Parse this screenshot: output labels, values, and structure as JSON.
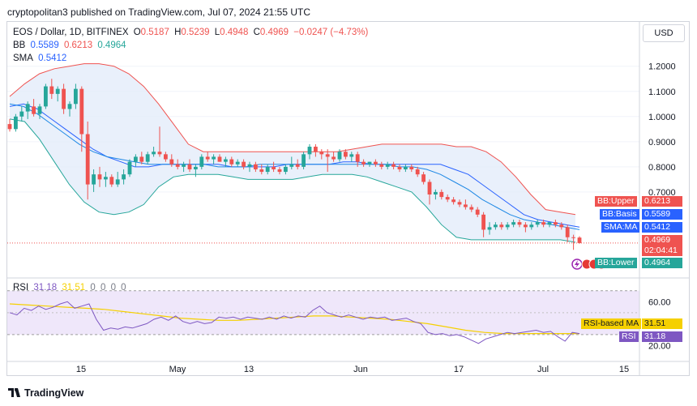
{
  "header": {
    "published_text": "cryptopolitan3 published on TradingView.com, Jul 07, 2024 21:55 UTC"
  },
  "legend": {
    "symbol": "EOS / Dollar, 1D, BITFINEX",
    "ohlc": {
      "o_label": "O",
      "o": "0.5187",
      "h_label": "H",
      "h": "0.5239",
      "l_label": "L",
      "l": "0.4948",
      "c_label": "C",
      "c": "0.4969",
      "change": "−0.0247 (−4.73%)"
    },
    "bb": {
      "label": "BB",
      "basis": "0.5589",
      "upper": "0.6213",
      "lower": "0.4964"
    },
    "sma": {
      "label": "SMA",
      "value": "0.5412"
    },
    "rsi": {
      "label": "RSI",
      "value": "31.18",
      "ma": "31.51",
      "zeros": [
        "0",
        "0",
        "0",
        "0"
      ]
    }
  },
  "currency_label": "USD",
  "price_axis": {
    "ticks": [
      "1.2000",
      "1.1000",
      "1.0000",
      "0.9000",
      "0.8000",
      "0.7000"
    ]
  },
  "rsi_axis": {
    "ticks": [
      "60.00",
      "20.00"
    ]
  },
  "time_axis": {
    "ticks": [
      "15",
      "May",
      "13",
      "Jun",
      "17",
      "Jul",
      "15"
    ]
  },
  "price_tags": {
    "bb_upper": {
      "label": "BB:Upper",
      "value": "0.6213"
    },
    "bb_basis": {
      "label": "BB:Basis",
      "value": "0.5589"
    },
    "sma": {
      "label": "SMA:MA",
      "value": "0.5412"
    },
    "last": {
      "value": "0.4969",
      "countdown": "02:04:41"
    },
    "bb_lower": {
      "label": "BB:Lower",
      "value": "0.4964"
    },
    "rsi_ma": {
      "label": "RSI-based MA",
      "value": "31.51"
    },
    "rsi": {
      "label": "RSI",
      "value": "31.18"
    }
  },
  "colors": {
    "up": "#26a69a",
    "down": "#ef5350",
    "bb_upper": "#ef5350",
    "bb_basis": "#2962ff",
    "bb_lower": "#26a69a",
    "bb_fill": "#e3ecfa",
    "sma": "#2962ff",
    "rsi": "#7e57c2",
    "rsi_ma": "#f5d000",
    "rsi_band": "#efe7fa"
  },
  "logo_text": "TradingView",
  "chart_data": {
    "type": "candlestick",
    "title": "EOS / Dollar, 1D, BITFINEX",
    "ylim": [
      0.4,
      1.27
    ],
    "candles": [
      {
        "o": 0.97,
        "h": 0.99,
        "l": 0.94,
        "c": 0.95
      },
      {
        "o": 0.95,
        "h": 1.01,
        "l": 0.94,
        "c": 1.0
      },
      {
        "o": 1.0,
        "h": 1.04,
        "l": 0.98,
        "c": 1.02
      },
      {
        "o": 1.02,
        "h": 1.06,
        "l": 0.99,
        "c": 1.05
      },
      {
        "o": 1.04,
        "h": 1.07,
        "l": 1.0,
        "c": 1.01
      },
      {
        "o": 1.01,
        "h": 1.05,
        "l": 0.99,
        "c": 1.04
      },
      {
        "o": 1.04,
        "h": 1.13,
        "l": 1.03,
        "c": 1.12
      },
      {
        "o": 1.12,
        "h": 1.15,
        "l": 1.07,
        "c": 1.09
      },
      {
        "o": 1.09,
        "h": 1.12,
        "l": 1.06,
        "c": 1.11
      },
      {
        "o": 1.11,
        "h": 1.13,
        "l": 1.01,
        "c": 1.03
      },
      {
        "o": 1.03,
        "h": 1.06,
        "l": 1.0,
        "c": 1.05
      },
      {
        "o": 1.05,
        "h": 1.13,
        "l": 1.03,
        "c": 1.11
      },
      {
        "o": 1.11,
        "h": 1.12,
        "l": 0.86,
        "c": 0.93
      },
      {
        "o": 0.93,
        "h": 0.98,
        "l": 0.67,
        "c": 0.73
      },
      {
        "o": 0.73,
        "h": 0.79,
        "l": 0.7,
        "c": 0.77
      },
      {
        "o": 0.77,
        "h": 0.8,
        "l": 0.72,
        "c": 0.75
      },
      {
        "o": 0.75,
        "h": 0.78,
        "l": 0.72,
        "c": 0.76
      },
      {
        "o": 0.76,
        "h": 0.77,
        "l": 0.72,
        "c": 0.73
      },
      {
        "o": 0.73,
        "h": 0.78,
        "l": 0.72,
        "c": 0.75
      },
      {
        "o": 0.75,
        "h": 0.79,
        "l": 0.73,
        "c": 0.77
      },
      {
        "o": 0.77,
        "h": 0.83,
        "l": 0.76,
        "c": 0.82
      },
      {
        "o": 0.82,
        "h": 0.85,
        "l": 0.8,
        "c": 0.84
      },
      {
        "o": 0.84,
        "h": 0.86,
        "l": 0.81,
        "c": 0.82
      },
      {
        "o": 0.82,
        "h": 0.86,
        "l": 0.81,
        "c": 0.85
      },
      {
        "o": 0.85,
        "h": 0.88,
        "l": 0.84,
        "c": 0.86
      },
      {
        "o": 0.86,
        "h": 0.96,
        "l": 0.84,
        "c": 0.85
      },
      {
        "o": 0.85,
        "h": 0.86,
        "l": 0.82,
        "c": 0.83
      },
      {
        "o": 0.83,
        "h": 0.85,
        "l": 0.8,
        "c": 0.81
      },
      {
        "o": 0.81,
        "h": 0.83,
        "l": 0.79,
        "c": 0.8
      },
      {
        "o": 0.8,
        "h": 0.82,
        "l": 0.78,
        "c": 0.81
      },
      {
        "o": 0.81,
        "h": 0.83,
        "l": 0.78,
        "c": 0.79
      },
      {
        "o": 0.79,
        "h": 0.81,
        "l": 0.76,
        "c": 0.8
      },
      {
        "o": 0.8,
        "h": 0.85,
        "l": 0.79,
        "c": 0.84
      },
      {
        "o": 0.84,
        "h": 0.86,
        "l": 0.82,
        "c": 0.83
      },
      {
        "o": 0.83,
        "h": 0.85,
        "l": 0.81,
        "c": 0.84
      },
      {
        "o": 0.84,
        "h": 0.85,
        "l": 0.82,
        "c": 0.82
      },
      {
        "o": 0.82,
        "h": 0.84,
        "l": 0.8,
        "c": 0.83
      },
      {
        "o": 0.83,
        "h": 0.84,
        "l": 0.8,
        "c": 0.81
      },
      {
        "o": 0.81,
        "h": 0.83,
        "l": 0.8,
        "c": 0.82
      },
      {
        "o": 0.82,
        "h": 0.83,
        "l": 0.79,
        "c": 0.8
      },
      {
        "o": 0.8,
        "h": 0.82,
        "l": 0.78,
        "c": 0.81
      },
      {
        "o": 0.81,
        "h": 0.82,
        "l": 0.78,
        "c": 0.79
      },
      {
        "o": 0.79,
        "h": 0.81,
        "l": 0.77,
        "c": 0.78
      },
      {
        "o": 0.78,
        "h": 0.81,
        "l": 0.77,
        "c": 0.8
      },
      {
        "o": 0.8,
        "h": 0.82,
        "l": 0.78,
        "c": 0.79
      },
      {
        "o": 0.79,
        "h": 0.8,
        "l": 0.77,
        "c": 0.78
      },
      {
        "o": 0.78,
        "h": 0.81,
        "l": 0.77,
        "c": 0.8
      },
      {
        "o": 0.8,
        "h": 0.84,
        "l": 0.79,
        "c": 0.81
      },
      {
        "o": 0.81,
        "h": 0.83,
        "l": 0.79,
        "c": 0.8
      },
      {
        "o": 0.8,
        "h": 0.86,
        "l": 0.79,
        "c": 0.85
      },
      {
        "o": 0.85,
        "h": 0.89,
        "l": 0.83,
        "c": 0.88
      },
      {
        "o": 0.88,
        "h": 0.89,
        "l": 0.84,
        "c": 0.86
      },
      {
        "o": 0.86,
        "h": 0.87,
        "l": 0.83,
        "c": 0.85
      },
      {
        "o": 0.85,
        "h": 0.87,
        "l": 0.78,
        "c": 0.84
      },
      {
        "o": 0.84,
        "h": 0.86,
        "l": 0.82,
        "c": 0.83
      },
      {
        "o": 0.83,
        "h": 0.87,
        "l": 0.82,
        "c": 0.86
      },
      {
        "o": 0.86,
        "h": 0.87,
        "l": 0.83,
        "c": 0.84
      },
      {
        "o": 0.84,
        "h": 0.86,
        "l": 0.82,
        "c": 0.85
      },
      {
        "o": 0.85,
        "h": 0.86,
        "l": 0.8,
        "c": 0.82
      },
      {
        "o": 0.82,
        "h": 0.83,
        "l": 0.8,
        "c": 0.81
      },
      {
        "o": 0.81,
        "h": 0.82,
        "l": 0.8,
        "c": 0.82
      },
      {
        "o": 0.82,
        "h": 0.83,
        "l": 0.8,
        "c": 0.81
      },
      {
        "o": 0.81,
        "h": 0.82,
        "l": 0.79,
        "c": 0.8
      },
      {
        "o": 0.8,
        "h": 0.82,
        "l": 0.79,
        "c": 0.81
      },
      {
        "o": 0.81,
        "h": 0.82,
        "l": 0.79,
        "c": 0.8
      },
      {
        "o": 0.8,
        "h": 0.81,
        "l": 0.78,
        "c": 0.79
      },
      {
        "o": 0.79,
        "h": 0.81,
        "l": 0.78,
        "c": 0.8
      },
      {
        "o": 0.8,
        "h": 0.81,
        "l": 0.78,
        "c": 0.79
      },
      {
        "o": 0.79,
        "h": 0.8,
        "l": 0.76,
        "c": 0.77
      },
      {
        "o": 0.77,
        "h": 0.78,
        "l": 0.73,
        "c": 0.74
      },
      {
        "o": 0.74,
        "h": 0.75,
        "l": 0.65,
        "c": 0.69
      },
      {
        "o": 0.69,
        "h": 0.71,
        "l": 0.67,
        "c": 0.7
      },
      {
        "o": 0.7,
        "h": 0.71,
        "l": 0.67,
        "c": 0.68
      },
      {
        "o": 0.68,
        "h": 0.69,
        "l": 0.66,
        "c": 0.67
      },
      {
        "o": 0.67,
        "h": 0.68,
        "l": 0.65,
        "c": 0.66
      },
      {
        "o": 0.66,
        "h": 0.67,
        "l": 0.64,
        "c": 0.65
      },
      {
        "o": 0.65,
        "h": 0.67,
        "l": 0.63,
        "c": 0.64
      },
      {
        "o": 0.64,
        "h": 0.65,
        "l": 0.62,
        "c": 0.63
      },
      {
        "o": 0.63,
        "h": 0.64,
        "l": 0.6,
        "c": 0.61
      },
      {
        "o": 0.61,
        "h": 0.62,
        "l": 0.52,
        "c": 0.55
      },
      {
        "o": 0.55,
        "h": 0.58,
        "l": 0.53,
        "c": 0.56
      },
      {
        "o": 0.56,
        "h": 0.58,
        "l": 0.55,
        "c": 0.57
      },
      {
        "o": 0.57,
        "h": 0.58,
        "l": 0.55,
        "c": 0.56
      },
      {
        "o": 0.56,
        "h": 0.58,
        "l": 0.55,
        "c": 0.57
      },
      {
        "o": 0.57,
        "h": 0.59,
        "l": 0.56,
        "c": 0.58
      },
      {
        "o": 0.58,
        "h": 0.59,
        "l": 0.56,
        "c": 0.57
      },
      {
        "o": 0.57,
        "h": 0.58,
        "l": 0.54,
        "c": 0.56
      },
      {
        "o": 0.56,
        "h": 0.58,
        "l": 0.55,
        "c": 0.57
      },
      {
        "o": 0.57,
        "h": 0.59,
        "l": 0.56,
        "c": 0.58
      },
      {
        "o": 0.58,
        "h": 0.59,
        "l": 0.56,
        "c": 0.57
      },
      {
        "o": 0.57,
        "h": 0.58,
        "l": 0.56,
        "c": 0.58
      },
      {
        "o": 0.58,
        "h": 0.59,
        "l": 0.56,
        "c": 0.57
      },
      {
        "o": 0.57,
        "h": 0.58,
        "l": 0.55,
        "c": 0.56
      },
      {
        "o": 0.56,
        "h": 0.57,
        "l": 0.5,
        "c": 0.52
      },
      {
        "o": 0.52,
        "h": 0.53,
        "l": 0.47,
        "c": 0.5187
      },
      {
        "o": 0.5187,
        "h": 0.5239,
        "l": 0.4948,
        "c": 0.4969
      }
    ],
    "bb_upper": [
      1.08,
      1.13,
      1.17,
      1.19,
      1.2,
      1.21,
      1.21,
      1.2,
      1.17,
      1.12,
      1.05,
      0.97,
      0.89,
      0.86,
      0.86,
      0.86,
      0.86,
      0.86,
      0.86,
      0.86,
      0.86,
      0.86,
      0.86,
      0.87,
      0.88,
      0.89,
      0.89,
      0.89,
      0.89,
      0.89,
      0.88,
      0.88,
      0.86,
      0.82,
      0.76,
      0.69,
      0.63,
      0.62,
      0.61
    ],
    "bb_basis": [
      1.04,
      1.05,
      1.03,
      0.99,
      0.95,
      0.91,
      0.87,
      0.84,
      0.82,
      0.8,
      0.8,
      0.81,
      0.81,
      0.81,
      0.81,
      0.81,
      0.8,
      0.8,
      0.8,
      0.8,
      0.81,
      0.81,
      0.81,
      0.81,
      0.82,
      0.82,
      0.81,
      0.81,
      0.81,
      0.81,
      0.81,
      0.81,
      0.79,
      0.77,
      0.73,
      0.69,
      0.65,
      0.61,
      0.59,
      0.58,
      0.57,
      0.56
    ],
    "bb_lower": [
      0.99,
      0.98,
      0.91,
      0.82,
      0.73,
      0.66,
      0.62,
      0.61,
      0.62,
      0.65,
      0.72,
      0.76,
      0.77,
      0.77,
      0.77,
      0.76,
      0.75,
      0.75,
      0.75,
      0.75,
      0.76,
      0.77,
      0.77,
      0.77,
      0.76,
      0.74,
      0.72,
      0.7,
      0.64,
      0.57,
      0.52,
      0.51,
      0.51,
      0.51,
      0.51,
      0.51,
      0.51,
      0.51,
      0.5
    ],
    "sma": [
      1.05,
      1.04,
      1.01,
      0.97,
      0.93,
      0.89,
      0.86,
      0.84,
      0.83,
      0.82,
      0.81,
      0.81,
      0.81,
      0.81,
      0.81,
      0.8,
      0.8,
      0.8,
      0.81,
      0.81,
      0.81,
      0.81,
      0.81,
      0.81,
      0.81,
      0.81,
      0.81,
      0.81,
      0.8,
      0.8,
      0.79,
      0.77,
      0.74,
      0.71,
      0.67,
      0.64,
      0.61,
      0.59,
      0.58,
      0.57,
      0.56,
      0.55
    ],
    "rsi": [
      50,
      48,
      54,
      52,
      56,
      53,
      55,
      58,
      60,
      54,
      56,
      58,
      44,
      34,
      36,
      35,
      37,
      36,
      38,
      40,
      44,
      46,
      43,
      47,
      42,
      40,
      42,
      40,
      41,
      46,
      45,
      46,
      44,
      46,
      45,
      44,
      46,
      44,
      47,
      45,
      47,
      46,
      52,
      56,
      50,
      48,
      46,
      48,
      46,
      44,
      46,
      45,
      46,
      43,
      44,
      45,
      42,
      40,
      32,
      30,
      31,
      29,
      30,
      28,
      25,
      22,
      26,
      28,
      30,
      32,
      31,
      32,
      33,
      34,
      32,
      33,
      28,
      24,
      32,
      31
    ],
    "rsi_ma": [
      58,
      57,
      56,
      55,
      54,
      53,
      51,
      49,
      47,
      45,
      44,
      43,
      43,
      44,
      45,
      46,
      47,
      47,
      46,
      45,
      44,
      42,
      40,
      37,
      34,
      32,
      31,
      31,
      31,
      31,
      31
    ],
    "rsi_ylim": [
      10,
      75
    ]
  }
}
